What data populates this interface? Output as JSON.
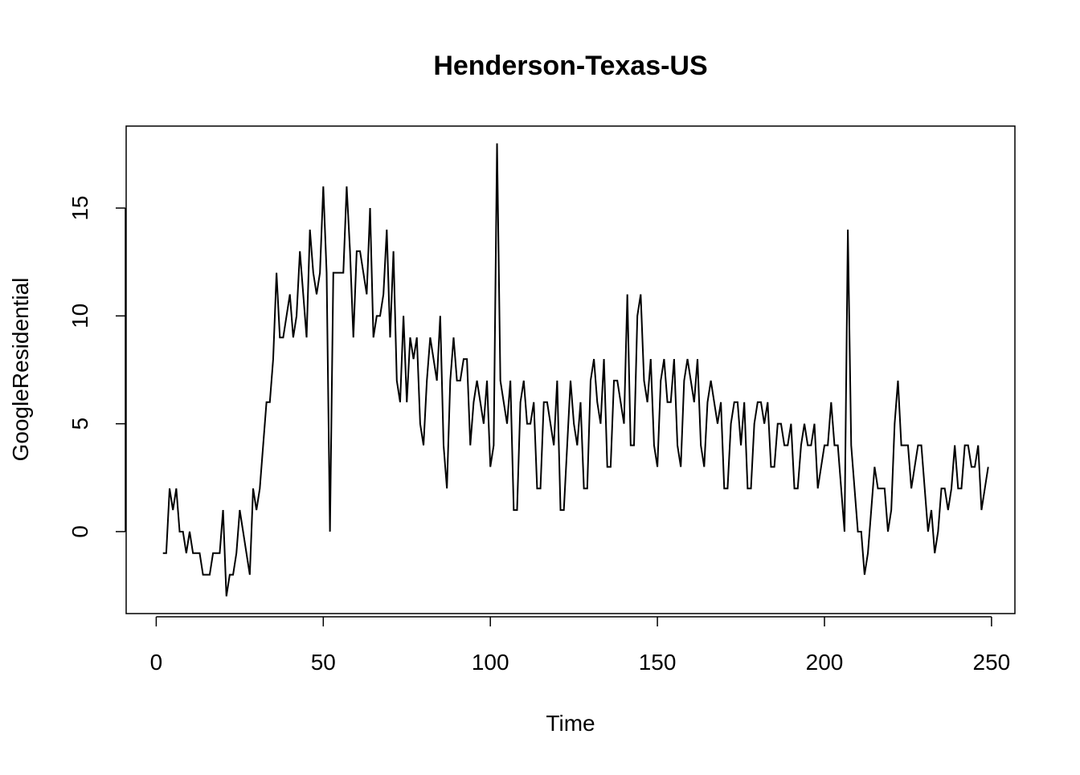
{
  "chart_data": {
    "type": "line",
    "title": "Henderson-Texas-US",
    "xlabel": "Time",
    "ylabel": "GoogleResidential",
    "xlim": [
      -9,
      257
    ],
    "ylim": [
      -3.8,
      18.8
    ],
    "xticks": [
      0,
      50,
      100,
      150,
      200,
      250
    ],
    "yticks": [
      0,
      5,
      10,
      15
    ],
    "grid": false,
    "legend": "none",
    "series": [
      {
        "color": "#000000",
        "x_start": 2,
        "x_step": 1,
        "values": [
          -1,
          -1,
          2,
          1,
          2,
          0,
          0,
          -1,
          0,
          -1,
          -1,
          -1,
          -2,
          -2,
          -2,
          -1,
          -1,
          -1,
          1,
          -3,
          -2,
          -2,
          -1,
          1,
          0,
          -1,
          -2,
          2,
          1,
          2,
          4,
          6,
          6,
          8,
          12,
          9,
          9,
          10,
          11,
          9,
          10,
          13,
          11,
          9,
          14,
          12,
          11,
          12,
          16,
          12,
          0,
          12,
          12,
          12,
          12,
          16,
          13,
          9,
          13,
          13,
          12,
          11,
          15,
          9,
          10,
          10,
          11,
          14,
          9,
          13,
          7,
          6,
          10,
          6,
          9,
          8,
          9,
          5,
          4,
          7,
          9,
          8,
          7,
          10,
          4,
          2,
          7,
          9,
          7,
          7,
          8,
          8,
          4,
          6,
          7,
          6,
          5,
          7,
          3,
          4,
          18,
          7,
          6,
          5,
          7,
          1,
          1,
          6,
          7,
          5,
          5,
          6,
          2,
          2,
          6,
          6,
          5,
          4,
          7,
          1,
          1,
          4,
          7,
          5,
          4,
          6,
          2,
          2,
          7,
          8,
          6,
          5,
          8,
          3,
          3,
          7,
          7,
          6,
          5,
          11,
          4,
          4,
          10,
          11,
          7,
          6,
          8,
          4,
          3,
          7,
          8,
          6,
          6,
          8,
          4,
          3,
          7,
          8,
          7,
          6,
          8,
          4,
          3,
          6,
          7,
          6,
          5,
          6,
          2,
          2,
          5,
          6,
          6,
          4,
          6,
          2,
          2,
          5,
          6,
          6,
          5,
          6,
          3,
          3,
          5,
          5,
          4,
          4,
          5,
          2,
          2,
          4,
          5,
          4,
          4,
          5,
          2,
          3,
          4,
          4,
          6,
          4,
          4,
          2,
          0,
          14,
          4,
          2,
          0,
          0,
          -2,
          -1,
          1,
          3,
          2,
          2,
          2,
          0,
          1,
          5,
          7,
          4,
          4,
          4,
          2,
          3,
          4,
          4,
          2,
          0,
          1,
          -1,
          0,
          2,
          2,
          1,
          2,
          4,
          2,
          2,
          4,
          4,
          3,
          3,
          4,
          1,
          2,
          3
        ]
      }
    ]
  }
}
